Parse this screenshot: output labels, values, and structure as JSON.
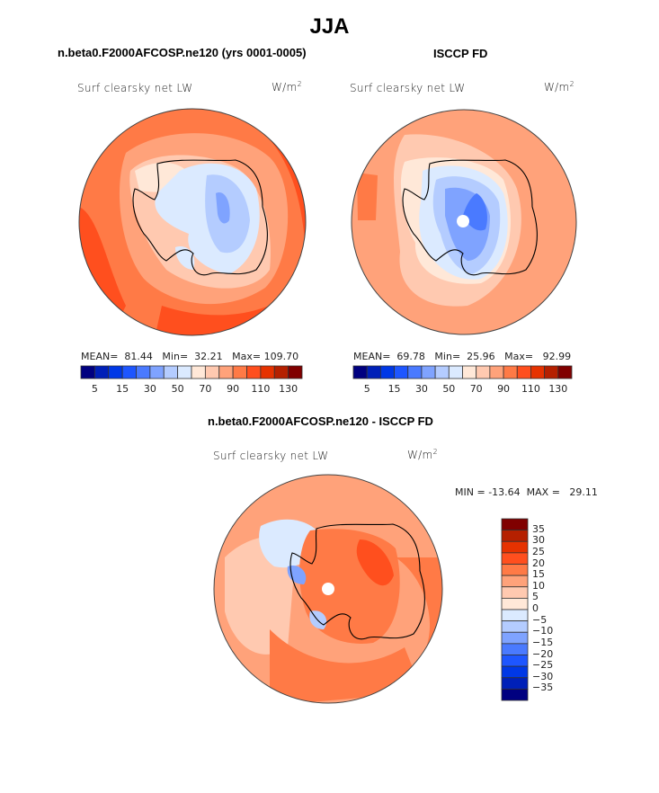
{
  "main_title": "JJA",
  "chart_data": [
    {
      "type": "heatmap",
      "projection": "south-polar-stereographic",
      "panel_title": "n.beta0.F2000AFCOSP.ne120 (yrs 0001-0005)",
      "left_label": "Surf clearsky net LW",
      "units_base": "W/m",
      "units_exp": "2",
      "stats": {
        "mean_label": "MEAN=",
        "mean": "81.44",
        "min_label": "Min=",
        "min": "32.21",
        "max_label": "Max=",
        "max": "109.70"
      },
      "colorbar": {
        "orientation": "horizontal",
        "levels": [
          5,
          10,
          15,
          20,
          30,
          40,
          50,
          60,
          70,
          80,
          90,
          100,
          110,
          120,
          130
        ],
        "tick_labels": [
          "5",
          "15",
          "30",
          "50",
          "70",
          "90",
          "110",
          "130"
        ],
        "colors": [
          "#000080",
          "#0020b8",
          "#0038e6",
          "#1e56ff",
          "#4a7aff",
          "#7fa3ff",
          "#b4ccff",
          "#dbeaff",
          "#ffe8d8",
          "#ffc9b0",
          "#ffa27a",
          "#ff7a46",
          "#ff4f1e",
          "#e63200",
          "#b52000",
          "#800000"
        ]
      },
      "description": "Ocean mostly 100-120 W/m2 (orange/red); Antarctic interior 30-60 W/m2 (light blue); coastal shelves 60-90 W/m2"
    },
    {
      "type": "heatmap",
      "projection": "south-polar-stereographic",
      "panel_title": "ISCCP FD",
      "left_label": "Surf clearsky net LW",
      "units_base": "W/m",
      "units_exp": "2",
      "stats": {
        "mean_label": "MEAN=",
        "mean": "69.78",
        "min_label": "Min=",
        "min": "25.96",
        "max_label": "Max=",
        "max": "92.99"
      },
      "colorbar": {
        "orientation": "horizontal",
        "levels": [
          5,
          10,
          15,
          20,
          30,
          40,
          50,
          60,
          70,
          80,
          90,
          100,
          110,
          120,
          130
        ],
        "tick_labels": [
          "5",
          "15",
          "30",
          "50",
          "70",
          "90",
          "110",
          "130"
        ],
        "colors": [
          "#000080",
          "#0020b8",
          "#0038e6",
          "#1e56ff",
          "#4a7aff",
          "#7fa3ff",
          "#b4ccff",
          "#dbeaff",
          "#ffe8d8",
          "#ffc9b0",
          "#ffa27a",
          "#ff7a46",
          "#ff4f1e",
          "#e63200",
          "#b52000",
          "#800000"
        ]
      },
      "description": "Ocean mostly 80-100 W/m2; Antarctic interior 25-50 W/m2 (blue) with missing data at pole"
    },
    {
      "type": "heatmap",
      "projection": "south-polar-stereographic",
      "panel_title": "n.beta0.F2000AFCOSP.ne120 - ISCCP FD",
      "left_label": "Surf clearsky net LW",
      "units_base": "W/m",
      "units_exp": "2",
      "stats": {
        "min_label": "MIN =",
        "min": "-13.64",
        "max_label": "MAX =",
        "max": "29.11"
      },
      "colorbar": {
        "orientation": "vertical",
        "levels": [
          -35,
          -30,
          -25,
          -20,
          -15,
          -10,
          -5,
          0,
          5,
          10,
          15,
          20,
          25,
          30,
          35
        ],
        "tick_labels": [
          "35",
          "30",
          "25",
          "20",
          "15",
          "10",
          "5",
          "0",
          "−5",
          "−10",
          "−15",
          "−20",
          "−25",
          "−30",
          "−35"
        ],
        "colors": [
          "#800000",
          "#b52000",
          "#e63200",
          "#ff4f1e",
          "#ff7a46",
          "#ffa27a",
          "#ffc9b0",
          "#ffe8d8",
          "#dbeaff",
          "#b4ccff",
          "#7fa3ff",
          "#4a7aff",
          "#1e56ff",
          "#0038e6",
          "#0020b8",
          "#000080"
        ]
      },
      "description": "Difference mostly +5 to +25 W/m2 over ocean and East Antarctica; small negative (-5 to -10) areas near Antarctic Peninsula and Ross Ice Shelf"
    }
  ]
}
